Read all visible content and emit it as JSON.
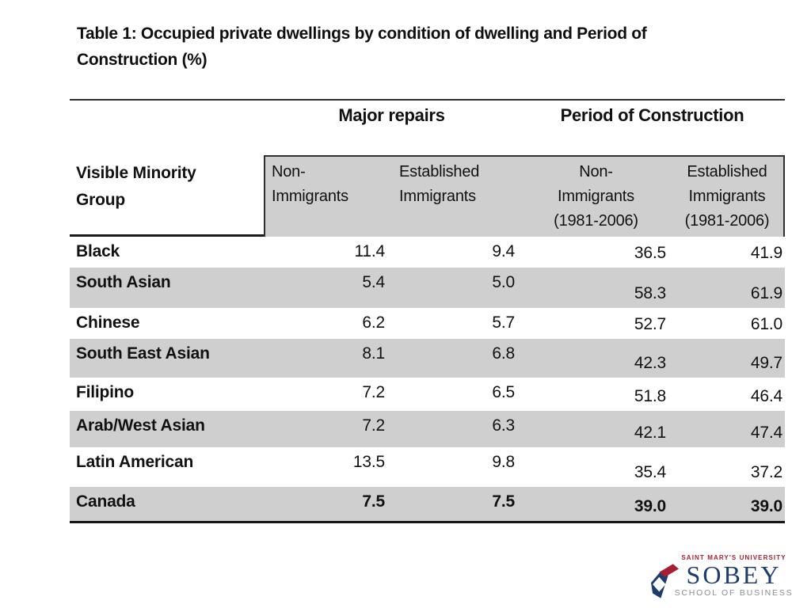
{
  "slide": {
    "title": "Table 1: Occupied private dwellings by condition of dwelling and Period of Construction (%)"
  },
  "table": {
    "group_headers": {
      "major_repairs": "Major repairs",
      "period_of_construction": "Period of Construction"
    },
    "row_header": "Visible Minority Group",
    "columns": [
      {
        "id": "non-immigrants",
        "lines": [
          "Non-",
          "Immigrants"
        ]
      },
      {
        "id": "established-immigrants",
        "lines": [
          "Established",
          "Immigrants"
        ]
      },
      {
        "id": "non-immigrants-1981-2006",
        "lines": [
          "Non-",
          "Immigrants",
          "(1981-2006)"
        ]
      },
      {
        "id": "established-immigrants-1981-2006",
        "lines": [
          "Established",
          "Immigrants",
          "(1981-2006)"
        ]
      }
    ],
    "rows": [
      {
        "label": "Black",
        "values": [
          "11.4",
          "9.4",
          "36.5",
          "41.9"
        ],
        "emphasis": false
      },
      {
        "label": "South Asian",
        "values": [
          "5.4",
          "5.0",
          "58.3",
          "61.9"
        ],
        "emphasis": false
      },
      {
        "label": "Chinese",
        "values": [
          "6.2",
          "5.7",
          "52.7",
          "61.0"
        ],
        "emphasis": false
      },
      {
        "label": "South East Asian",
        "values": [
          "8.1",
          "6.8",
          "42.3",
          "49.7"
        ],
        "emphasis": false
      },
      {
        "label": "Filipino",
        "values": [
          "7.2",
          "6.5",
          "51.8",
          "46.4"
        ],
        "emphasis": false
      },
      {
        "label": "Arab/West Asian",
        "values": [
          "7.2",
          "6.3",
          "42.1",
          "47.4"
        ],
        "emphasis": false
      },
      {
        "label": "Latin American",
        "values": [
          "13.5",
          "9.8",
          "35.4",
          "37.2"
        ],
        "emphasis": false
      },
      {
        "label": "Canada",
        "values": [
          "7.5",
          "7.5",
          "39.0",
          "39.0"
        ],
        "emphasis": true
      }
    ]
  },
  "logo": {
    "university": "SAINT MARY'S UNIVERSITY",
    "name": "SOBEY",
    "school": "SCHOOL OF BUSINESS",
    "mark_icon": "sobey-diamond-logo",
    "colors": {
      "red": "#a81e32",
      "navy": "#1e3c6e",
      "gray": "#8b8d90"
    }
  },
  "colors": {
    "stripe": "#cfcfcf",
    "header_fill": "#cfcfcf",
    "border_dark": "#2f2f2f",
    "bottom_rule": "#151515",
    "text": "#111111"
  }
}
